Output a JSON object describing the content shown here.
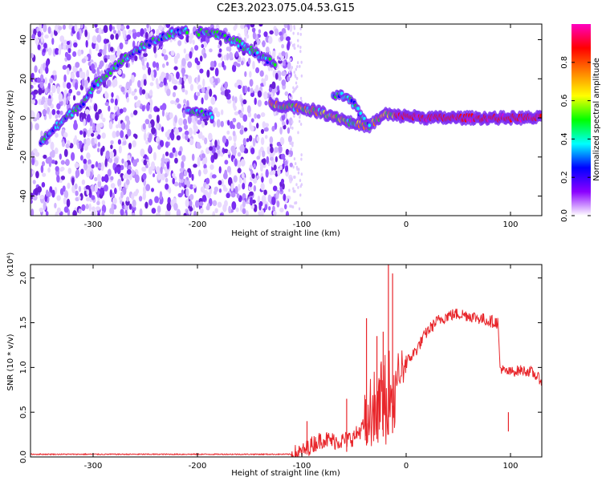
{
  "title": "C2E3.2023.075.04.53.G15",
  "chart_data": [
    {
      "type": "heatmap",
      "xlabel": "Height of straight line (km)",
      "ylabel": "Frequency (Hz)",
      "xlim": [
        -360,
        130
      ],
      "ylim": [
        -50,
        48
      ],
      "xticks": [
        -300,
        -200,
        -100,
        0,
        100
      ],
      "yticks": [
        -40,
        -20,
        0,
        20,
        40
      ],
      "colorbar": {
        "label": "Normalized spectral amplitude",
        "range": [
          0.0,
          1.0
        ],
        "ticks": [
          0.0,
          0.2,
          0.4,
          0.6,
          0.8
        ],
        "colors": [
          "#ffffff",
          "#8b00ff",
          "#0000ff",
          "#00ffff",
          "#00ff00",
          "#ffff00",
          "#ff8000",
          "#ff0000",
          "#ff00c0"
        ]
      },
      "features": {
        "noise_region_x": [
          -360,
          -110
        ],
        "ridges": [
          {
            "x": [
              -350,
              -330,
              -310,
              -300
            ],
            "y": [
              -12,
              -2,
              8,
              14
            ]
          },
          {
            "x": [
              -300,
              -280,
              -260,
              -240,
              -225,
              -210
            ],
            "y": [
              16,
              26,
              34,
              40,
              43,
              44
            ]
          },
          {
            "x": [
              -200,
              -180,
              -160,
              -140,
              -125
            ],
            "y": [
              44,
              43,
              38,
              32,
              27
            ]
          },
          {
            "x": [
              -210,
              -195,
              -185
            ],
            "y": [
              3,
              3,
              0
            ]
          },
          {
            "x": [
              -130,
              -110,
              -90,
              -70,
              -50,
              -35,
              -20,
              -10,
              0,
              20,
              50,
              80,
              100,
              130
            ],
            "y": [
              7,
              6,
              4,
              1,
              -3,
              -4,
              2,
              1,
              1,
              0,
              0,
              0,
              0,
              0
            ]
          },
          {
            "x": [
              -70,
              -60,
              -50,
              -45,
              -40,
              -35
            ],
            "y": [
              12,
              11,
              7,
              3,
              -1,
              -3
            ]
          }
        ]
      }
    },
    {
      "type": "line",
      "xlabel": "Height of straight line (km)",
      "ylabel": "SNR (10 * v/v)",
      "multiplier": "(x10⁴)",
      "xlim": [
        -360,
        130
      ],
      "ylim": [
        0,
        2.15
      ],
      "xticks": [
        -300,
        -200,
        -100,
        0,
        100
      ],
      "yticks": [
        0.0,
        0.5,
        1.0,
        1.5,
        2.0
      ],
      "ytick_labels": [
        "0.0",
        "0.5",
        "1.0",
        "1.5",
        "2.0"
      ],
      "line_color": "#e8262b",
      "series": [
        {
          "x": [
            -360,
            -300,
            -200,
            -110,
            -100,
            -90,
            -80,
            -70,
            -60,
            -50,
            -40,
            -35,
            -30,
            -25,
            -20,
            -15,
            -10,
            -5,
            0,
            10,
            20,
            30,
            40,
            50,
            60,
            70,
            80,
            88,
            90,
            95,
            100,
            110,
            120,
            130
          ],
          "y": [
            0.03,
            0.03,
            0.03,
            0.03,
            0.05,
            0.14,
            0.2,
            0.18,
            0.18,
            0.22,
            0.35,
            0.55,
            0.65,
            0.7,
            0.8,
            0.85,
            0.95,
            1.0,
            1.05,
            1.2,
            1.4,
            1.52,
            1.58,
            1.6,
            1.58,
            1.55,
            1.52,
            1.5,
            1.0,
            0.95,
            0.95,
            0.97,
            0.95,
            0.85
          ]
        }
      ],
      "spikes": [
        {
          "x": -95,
          "y": 0.4
        },
        {
          "x": -57,
          "y": 0.65
        },
        {
          "x": -38,
          "y": 1.55
        },
        {
          "x": -28,
          "y": 1.35
        },
        {
          "x": -22,
          "y": 1.4
        },
        {
          "x": -17,
          "y": 2.15
        },
        {
          "x": -13,
          "y": 2.05
        },
        {
          "x": 98,
          "y": 0.5
        }
      ]
    }
  ]
}
